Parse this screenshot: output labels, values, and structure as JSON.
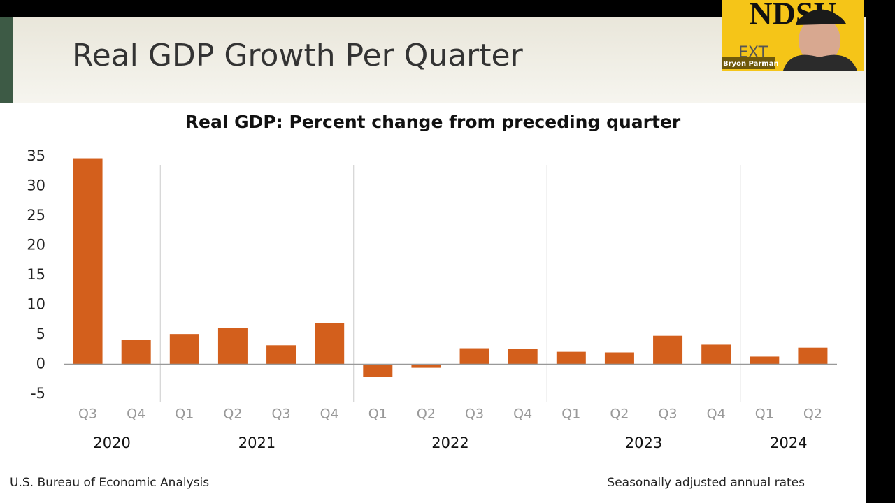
{
  "slide": {
    "title": "Real GDP Growth Per Quarter",
    "source": "U.S. Bureau of Economic Analysis",
    "note": "Seasonally adjusted annual rates"
  },
  "webcam": {
    "logo": "NDSU",
    "logo_sub": "EXT",
    "presenter": "Bryon Parman"
  },
  "chart_data": {
    "type": "bar",
    "title": "Real GDP: Percent change from preceding quarter",
    "color": "#d35f1c",
    "groups": [
      {
        "label": "2020",
        "categories": [
          "Q3",
          "Q4"
        ]
      },
      {
        "label": "2021",
        "categories": [
          "Q1",
          "Q2",
          "Q3",
          "Q4"
        ]
      },
      {
        "label": "2022",
        "categories": [
          "Q1",
          "Q2",
          "Q3",
          "Q4"
        ]
      },
      {
        "label": "2023",
        "categories": [
          "Q1",
          "Q2",
          "Q3",
          "Q4"
        ]
      },
      {
        "label": "2024",
        "categories": [
          "Q1",
          "Q2"
        ]
      }
    ],
    "values": [
      34.7,
      4.1,
      5.1,
      6.1,
      3.2,
      6.9,
      -2.1,
      -0.6,
      2.7,
      2.6,
      2.1,
      2.0,
      4.8,
      3.3,
      1.3,
      2.8
    ],
    "ylim": [
      -5,
      35
    ],
    "yticks": [
      -5,
      0,
      5,
      10,
      15,
      20,
      25,
      30,
      35
    ],
    "grid": false
  }
}
